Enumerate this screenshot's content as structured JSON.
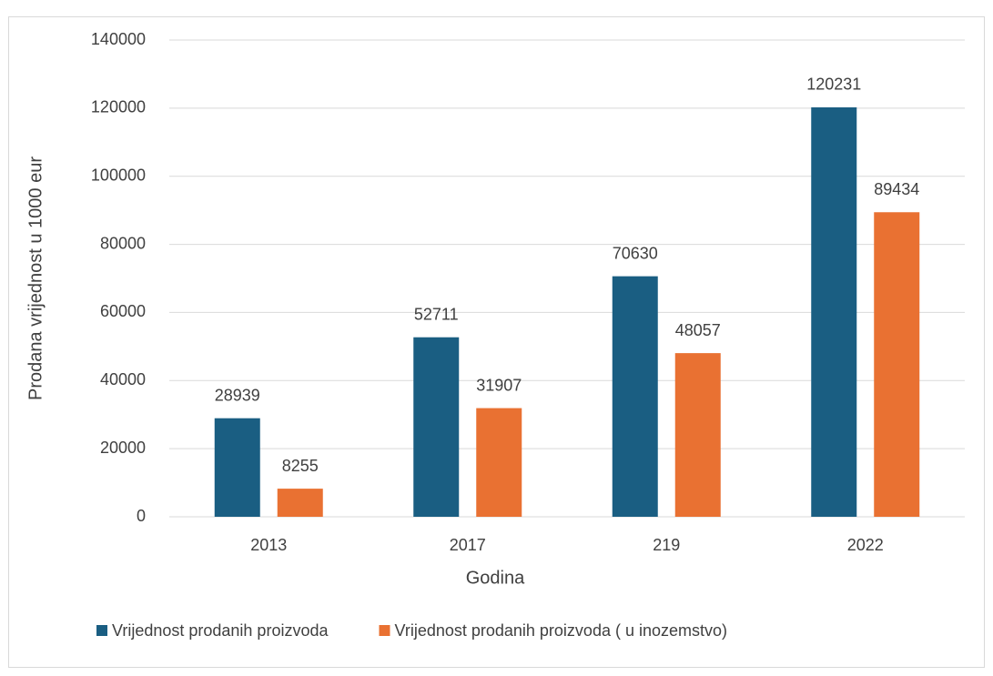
{
  "chart_data": {
    "type": "bar",
    "categories": [
      "2013",
      "2017",
      "219",
      "2022"
    ],
    "series": [
      {
        "name": "Vrijednost prodanih proizvoda",
        "color": "#1a5e82",
        "values": [
          28939,
          52711,
          70630,
          120231
        ]
      },
      {
        "name": "Vrijednost prodanih proizvoda ( u inozemstvo)",
        "color": "#e97132",
        "values": [
          8255,
          31907,
          48057,
          89434
        ]
      }
    ],
    "x_label": "Godina",
    "y_label": "Prodana vrijednost u 1000 eur",
    "ylim": [
      0,
      140000
    ],
    "yticks": [
      0,
      20000,
      40000,
      60000,
      80000,
      100000,
      120000,
      140000
    ],
    "grid": true,
    "legend": "bottom"
  }
}
